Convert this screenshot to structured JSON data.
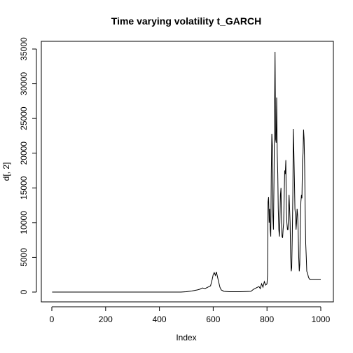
{
  "chart_data": {
    "type": "line",
    "title": "Time varying volatility t_GARCH",
    "xlabel": "Index",
    "ylabel": "d[, 2]",
    "xlim": [
      0,
      1000
    ],
    "ylim": [
      0,
      35000
    ],
    "xticks": [
      0,
      200,
      400,
      600,
      800,
      1000
    ],
    "yticks": [
      0,
      5000,
      10000,
      15000,
      20000,
      25000,
      30000,
      35000
    ],
    "grid": false,
    "legend": "none",
    "line_color": "#000000",
    "series": [
      {
        "x": [
          1,
          100,
          200,
          300,
          400,
          480,
          500,
          520,
          540,
          550,
          560,
          570,
          580,
          590,
          596,
          600,
          604,
          608,
          612,
          616,
          620,
          625,
          630,
          640,
          660,
          700,
          740,
          750,
          760,
          770,
          775,
          780,
          785,
          790,
          795,
          800,
          802,
          804,
          806,
          808,
          810,
          812,
          814,
          816,
          818,
          820,
          822,
          824,
          826,
          828,
          830,
          832,
          834,
          836,
          838,
          840,
          842,
          844,
          846,
          848,
          850,
          852,
          854,
          856,
          858,
          860,
          862,
          864,
          866,
          868,
          870,
          872,
          874,
          876,
          878,
          880,
          882,
          884,
          886,
          888,
          890,
          892,
          894,
          896,
          898,
          900,
          902,
          904,
          906,
          908,
          910,
          912,
          914,
          916,
          918,
          920,
          922,
          924,
          926,
          928,
          930,
          932,
          934,
          936,
          938,
          940,
          942,
          944,
          946,
          948,
          950,
          952,
          954,
          956,
          958,
          960,
          962,
          964,
          966,
          968,
          970,
          972,
          974,
          976,
          978,
          980,
          982,
          984,
          986,
          988,
          990,
          992,
          994,
          996,
          998,
          1000
        ],
        "values": [
          0,
          0,
          0,
          0,
          0,
          0,
          50,
          150,
          300,
          400,
          600,
          500,
          700,
          900,
          1800,
          2500,
          2800,
          2400,
          2900,
          2200,
          1500,
          700,
          300,
          100,
          50,
          50,
          100,
          400,
          600,
          800,
          500,
          1200,
          700,
          1500,
          1000,
          1200,
          2500,
          13000,
          13700,
          10000,
          12000,
          9000,
          8000,
          17000,
          22800,
          21000,
          11000,
          9000,
          16000,
          26000,
          34600,
          22000,
          21500,
          28000,
          20000,
          17000,
          12000,
          9000,
          8000,
          10000,
          14000,
          15000,
          10000,
          8000,
          7800,
          9000,
          10000,
          14000,
          17500,
          17000,
          19000,
          12000,
          10000,
          9000,
          9000,
          11000,
          14000,
          12000,
          10000,
          5000,
          3000,
          3500,
          8000,
          14000,
          23500,
          20000,
          16000,
          12000,
          11000,
          9000,
          10000,
          12000,
          11000,
          9000,
          5000,
          3000,
          4000,
          10000,
          13000,
          14000,
          13500,
          19000,
          20000,
          23400,
          22000,
          18000,
          12000,
          7000,
          5000,
          3000,
          2800,
          2500,
          2200,
          2000,
          1900,
          1800,
          1800,
          1800,
          1800,
          1800,
          1800,
          1800,
          1800,
          1800,
          1800,
          1800,
          1800,
          1800,
          1800,
          1800,
          1800,
          1800,
          1800,
          1800,
          1800,
          1800
        ]
      }
    ]
  }
}
